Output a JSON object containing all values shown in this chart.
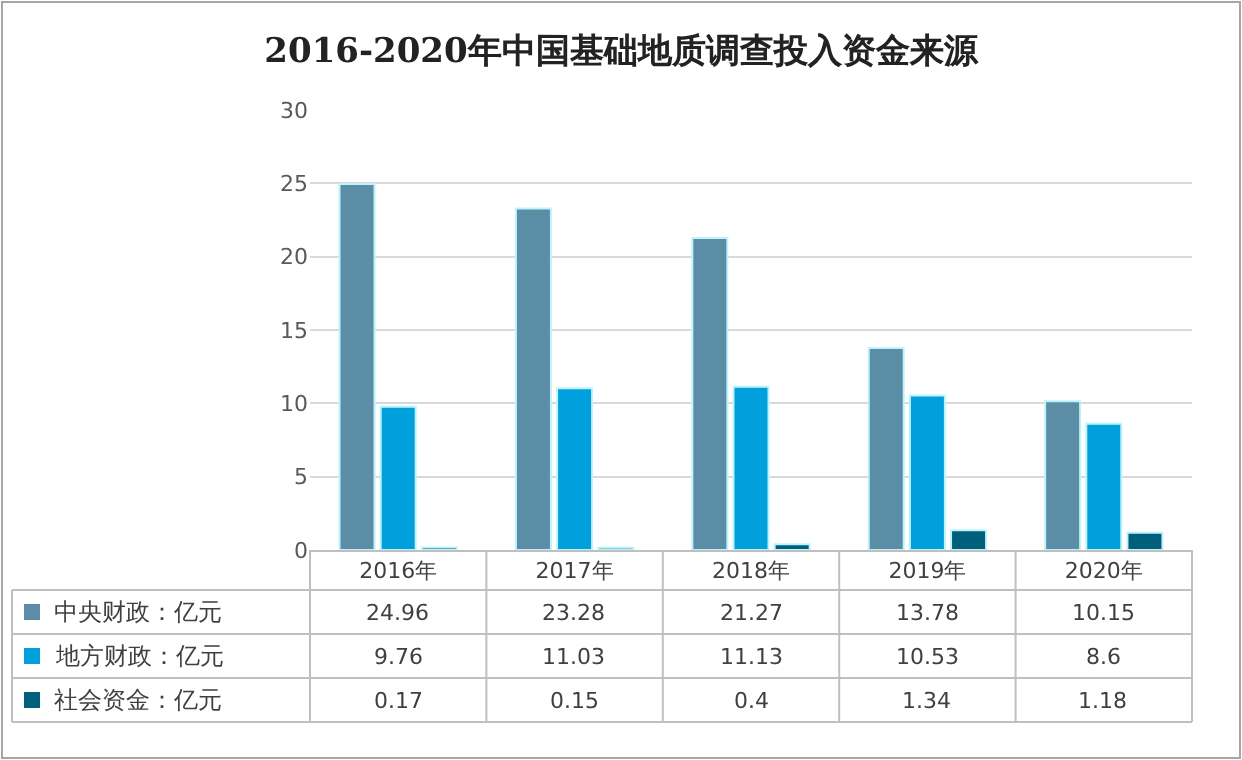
{
  "chart_data": {
    "type": "bar",
    "title": "2016-2020年中国基础地质调查投入资金来源",
    "categories": [
      "2016年",
      "2017年",
      "2018年",
      "2019年",
      "2020年"
    ],
    "series": [
      {
        "name": "中央财政：亿元",
        "color": "#5b8ea6",
        "values": [
          24.96,
          23.28,
          21.27,
          13.78,
          10.15
        ]
      },
      {
        "name": "地方财政：亿元",
        "color": "#00a0dc",
        "values": [
          9.76,
          11.03,
          11.13,
          10.53,
          8.6
        ]
      },
      {
        "name": "社会资金：亿元",
        "color": "#005f7d",
        "values": [
          0.17,
          0.15,
          0.4,
          1.34,
          1.18
        ]
      }
    ],
    "ylim": [
      0,
      30
    ],
    "yticks": [
      0,
      5,
      10,
      15,
      20,
      25,
      30
    ],
    "grid": "y",
    "data_labels": true,
    "legend": "bottom left"
  }
}
